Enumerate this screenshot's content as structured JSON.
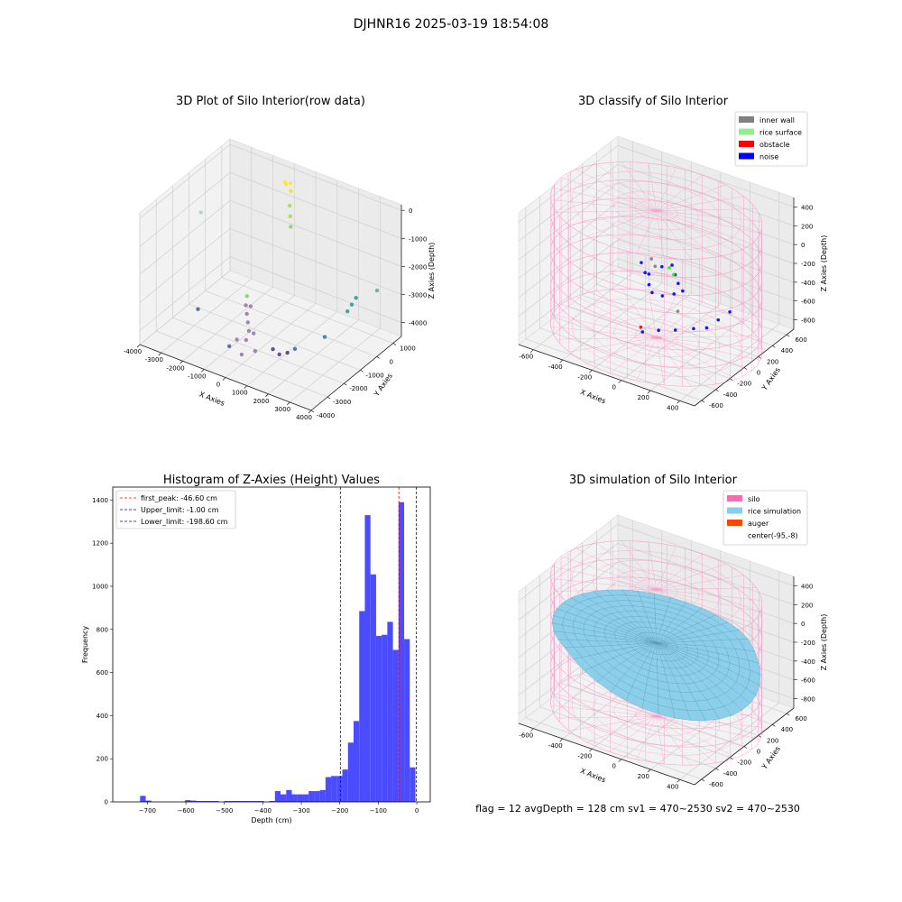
{
  "figure": {
    "suptitle": "DJHNR16 2025-03-19 18:54:08",
    "footer": "flag = 12   avgDepth = 128 cm  sv1 = 470~2530  sv2 = 470~2530"
  },
  "chart_data": [
    {
      "type": "scatter",
      "projection": "3d",
      "title": "3D Plot of Silo Interior(row data)",
      "xlabel": "X Axies",
      "ylabel": "Y Axies",
      "zlabel": "Z Axies (Depth)",
      "x_ticks": [
        "-4000",
        "-3000",
        "-2000",
        "-1000",
        "0",
        "1000",
        "2000",
        "3000",
        "4000"
      ],
      "y_ticks": [
        "-4000",
        "-3000",
        "-2000",
        "-1000",
        "0",
        "1000"
      ],
      "z_ticks": [
        "-4000",
        "-3000",
        "-2000",
        "-1000",
        "0"
      ],
      "xlim": [
        -4000,
        4000
      ],
      "ylim": [
        -4000,
        1500
      ],
      "zlim": [
        -4500,
        200
      ],
      "grid": true,
      "colormap": "viridis",
      "points": [
        {
          "x": -1000,
          "y": 1000,
          "z": -300,
          "c": "#fde725"
        },
        {
          "x": -800,
          "y": 1000,
          "z": -200,
          "c": "#fde725"
        },
        {
          "x": -900,
          "y": 800,
          "z": -100,
          "c": "#fde725"
        },
        {
          "x": -700,
          "y": 900,
          "z": -400,
          "c": "#e5e419"
        },
        {
          "x": -600,
          "y": 700,
          "z": -800,
          "c": "#a0da39"
        },
        {
          "x": -500,
          "y": 600,
          "z": -1100,
          "c": "#a0da39"
        },
        {
          "x": -400,
          "y": 500,
          "z": -1400,
          "c": "#7ad151"
        },
        {
          "x": -3600,
          "y": -800,
          "z": -1200,
          "c": "#9bd8b0"
        },
        {
          "x": -1600,
          "y": -600,
          "z": -3700,
          "c": "#7ad151"
        },
        {
          "x": -1500,
          "y": -800,
          "z": -3900,
          "c": "#8f6aa0"
        },
        {
          "x": -1300,
          "y": -1000,
          "z": -4050,
          "c": "#8f6aa0"
        },
        {
          "x": -1100,
          "y": -1200,
          "z": -4200,
          "c": "#8f6aa0"
        },
        {
          "x": -900,
          "y": -1400,
          "z": -4350,
          "c": "#8f6aa0"
        },
        {
          "x": -800,
          "y": -1700,
          "z": -4500,
          "c": "#8f6aa0"
        },
        {
          "x": -1000,
          "y": -2000,
          "z": -4400,
          "c": "#8f6aa0"
        },
        {
          "x": -600,
          "y": -1500,
          "z": -4300,
          "c": "#8f6aa0"
        },
        {
          "x": -1200,
          "y": -2200,
          "z": -4600,
          "c": "#3b528b"
        },
        {
          "x": -700,
          "y": -2100,
          "z": -4800,
          "c": "#8f6aa0"
        },
        {
          "x": -300,
          "y": -1800,
          "z": -4700,
          "c": "#8f6aa0"
        },
        {
          "x": 300,
          "y": -1500,
          "z": -4600,
          "c": "#482878"
        },
        {
          "x": 600,
          "y": -1500,
          "z": -4700,
          "c": "#482878"
        },
        {
          "x": 900,
          "y": -1400,
          "z": -4600,
          "c": "#482878"
        },
        {
          "x": 1100,
          "y": -1200,
          "z": -4500,
          "c": "#3b528b"
        },
        {
          "x": 1800,
          "y": -300,
          "z": -4300,
          "c": "#31688e"
        },
        {
          "x": -3200,
          "y": -1500,
          "z": -4200,
          "c": "#3b528b"
        },
        {
          "x": 2400,
          "y": 300,
          "z": -3500,
          "c": "#21918c"
        },
        {
          "x": 2600,
          "y": 300,
          "z": -3200,
          "c": "#21918c"
        },
        {
          "x": 2800,
          "y": 300,
          "z": -2900,
          "c": "#21918c"
        },
        {
          "x": 3400,
          "y": 800,
          "z": -2700,
          "c": "#5aa08a"
        },
        {
          "x": -1200,
          "y": -900,
          "z": -3800,
          "c": "#8f6aa0"
        }
      ]
    },
    {
      "type": "scatter",
      "projection": "3d",
      "title": "3D classify of Silo Interior",
      "xlabel": "X Axies",
      "ylabel": "Y Axies",
      "zlabel": "Z Axies (Depth)",
      "x_ticks": [
        "-600",
        "-400",
        "-200",
        "0",
        "200",
        "400"
      ],
      "y_ticks": [
        "-600",
        "-400",
        "-200",
        "0",
        "200",
        "400",
        "600"
      ],
      "z_ticks": [
        "-800",
        "-600",
        "-400",
        "-200",
        "0",
        "200",
        "400"
      ],
      "xlim": [
        -700,
        500
      ],
      "ylim": [
        -700,
        700
      ],
      "zlim": [
        -900,
        500
      ],
      "grid": true,
      "legend": {
        "loc": "top-right",
        "items": [
          {
            "label": "inner wall",
            "color": "#808080"
          },
          {
            "label": "rice surface",
            "color": "#90ee90"
          },
          {
            "label": "obstacle",
            "color": "#ff0000"
          },
          {
            "label": "noise",
            "color": "#0000ff"
          }
        ]
      },
      "silo_wireframe": {
        "color": "#ff69b4",
        "radius": 650,
        "z_range": [
          -900,
          450
        ]
      },
      "points": [
        {
          "x": -250,
          "y": 100,
          "z": -250,
          "c": "#0000ff"
        },
        {
          "x": -200,
          "y": 50,
          "z": -300,
          "c": "#0000ff"
        },
        {
          "x": -150,
          "y": 0,
          "z": -260,
          "c": "#0000ff"
        },
        {
          "x": -100,
          "y": 80,
          "z": -200,
          "c": "#0000ff"
        },
        {
          "x": -50,
          "y": 120,
          "z": -180,
          "c": "#0000ff"
        },
        {
          "x": 0,
          "y": 60,
          "z": -220,
          "c": "#0000ff"
        },
        {
          "x": 50,
          "y": 0,
          "z": -250,
          "c": "#0000ff"
        },
        {
          "x": 100,
          "y": -40,
          "z": -280,
          "c": "#0000ff"
        },
        {
          "x": -120,
          "y": -60,
          "z": -320,
          "c": "#0000ff"
        },
        {
          "x": -80,
          "y": -100,
          "z": -360,
          "c": "#0000ff"
        },
        {
          "x": 0,
          "y": -120,
          "z": -340,
          "c": "#0000ff"
        },
        {
          "x": 60,
          "y": -80,
          "z": -310,
          "c": "#0000ff"
        },
        {
          "x": -30,
          "y": 40,
          "z": -150,
          "c": "#00ff00"
        },
        {
          "x": 10,
          "y": 20,
          "z": -190,
          "c": "#00ff00"
        },
        {
          "x": -180,
          "y": 150,
          "z": -280,
          "c": "#808080"
        },
        {
          "x": -220,
          "y": 180,
          "z": -240,
          "c": "#808080"
        },
        {
          "x": 120,
          "y": -150,
          "z": -420,
          "c": "#808080"
        },
        {
          "x": 300,
          "y": -300,
          "z": -420,
          "c": "#0000ff"
        },
        {
          "x": 380,
          "y": -280,
          "z": -380,
          "c": "#0000ff"
        },
        {
          "x": 420,
          "y": -200,
          "z": -320,
          "c": "#0000ff"
        },
        {
          "x": 460,
          "y": -120,
          "z": -260,
          "c": "#0000ff"
        },
        {
          "x": 200,
          "y": -350,
          "z": -460,
          "c": "#0000ff"
        },
        {
          "x": 100,
          "y": -380,
          "z": -500,
          "c": "#0000ff"
        },
        {
          "x": 0,
          "y": -400,
          "z": -560,
          "c": "#0000ff"
        },
        {
          "x": -60,
          "y": -300,
          "z": -600,
          "c": "#ff0000"
        }
      ]
    },
    {
      "type": "bar",
      "title": "Histogram of Z-Axies (Height) Values",
      "xlabel": "Depth (cm)",
      "ylabel": "Frequency",
      "xlim": [
        -790,
        35
      ],
      "ylim": [
        0,
        1460
      ],
      "x_ticks": [
        -700,
        -600,
        -500,
        -400,
        -300,
        -200,
        -100,
        0
      ],
      "y_ticks": [
        0,
        200,
        400,
        600,
        800,
        1000,
        1200,
        1400
      ],
      "bin_width": 14.6,
      "bar_color": "#4b4bff",
      "bins": [
        {
          "left": -719.0,
          "count": 28
        },
        {
          "left": -704.4,
          "count": 6
        },
        {
          "left": -602.2,
          "count": 8
        },
        {
          "left": -587.6,
          "count": 6
        },
        {
          "left": -573.0,
          "count": 4
        },
        {
          "left": -558.4,
          "count": 4
        },
        {
          "left": -543.8,
          "count": 4
        },
        {
          "left": -529.2,
          "count": 4
        },
        {
          "left": -500.0,
          "count": 4
        },
        {
          "left": -485.4,
          "count": 4
        },
        {
          "left": -470.8,
          "count": 4
        },
        {
          "left": -456.2,
          "count": 4
        },
        {
          "left": -441.6,
          "count": 4
        },
        {
          "left": -427.0,
          "count": 4
        },
        {
          "left": -412.4,
          "count": 4
        },
        {
          "left": -383.2,
          "count": 4
        },
        {
          "left": -368.6,
          "count": 50
        },
        {
          "left": -354.0,
          "count": 35
        },
        {
          "left": -339.4,
          "count": 55
        },
        {
          "left": -324.8,
          "count": 35
        },
        {
          "left": -310.2,
          "count": 35
        },
        {
          "left": -295.6,
          "count": 35
        },
        {
          "left": -281.0,
          "count": 50
        },
        {
          "left": -266.4,
          "count": 50
        },
        {
          "left": -251.8,
          "count": 55
        },
        {
          "left": -237.2,
          "count": 115
        },
        {
          "left": -222.6,
          "count": 120
        },
        {
          "left": -208.0,
          "count": 120
        },
        {
          "left": -193.4,
          "count": 150
        },
        {
          "left": -178.8,
          "count": 275
        },
        {
          "left": -164.2,
          "count": 375
        },
        {
          "left": -149.6,
          "count": 885
        },
        {
          "left": -135.0,
          "count": 1330
        },
        {
          "left": -120.4,
          "count": 1055
        },
        {
          "left": -105.8,
          "count": 770
        },
        {
          "left": -91.2,
          "count": 775
        },
        {
          "left": -76.6,
          "count": 835
        },
        {
          "left": -62.0,
          "count": 705
        },
        {
          "left": -47.4,
          "count": 1390
        },
        {
          "left": -32.8,
          "count": 755
        },
        {
          "left": -18.2,
          "count": 160
        }
      ],
      "vlines": [
        {
          "label": "first_peak: -46.60 cm",
          "x": -46.6,
          "color": "#ff0000"
        },
        {
          "label": "Upper_limit: -1.00 cm",
          "x": -1.0,
          "color": "#0000cc"
        },
        {
          "label": "Lower_limit: -198.60 cm",
          "x": -198.6,
          "color": "#0000cc"
        }
      ],
      "legend": {
        "loc": "top-left"
      }
    },
    {
      "type": "surface",
      "projection": "3d",
      "title": "3D simulation of Silo Interior",
      "xlabel": "X Axies",
      "ylabel": "Y Axies",
      "zlabel": "Z Axies (Depth)",
      "x_ticks": [
        "-600",
        "-400",
        "-200",
        "0",
        "200",
        "400"
      ],
      "y_ticks": [
        "-600",
        "-400",
        "-200",
        "0",
        "200",
        "400",
        "600"
      ],
      "z_ticks": [
        "-800",
        "-600",
        "-400",
        "-200",
        "0",
        "200",
        "400"
      ],
      "xlim": [
        -700,
        500
      ],
      "ylim": [
        -700,
        700
      ],
      "zlim": [
        -900,
        500
      ],
      "grid": true,
      "legend": {
        "loc": "top-right",
        "items": [
          {
            "label": "silo",
            "color": "#ff69b4"
          },
          {
            "label": "rice simulation",
            "color": "#87ceeb"
          },
          {
            "label": "auger",
            "color": "#ff4500"
          },
          {
            "label": "center(-95,-8)",
            "color": ""
          }
        ]
      },
      "silo_wireframe": {
        "color": "#ff69b4",
        "radius": 650,
        "z_range": [
          -900,
          450
        ]
      },
      "surface_color": "#87ceeb"
    }
  ]
}
